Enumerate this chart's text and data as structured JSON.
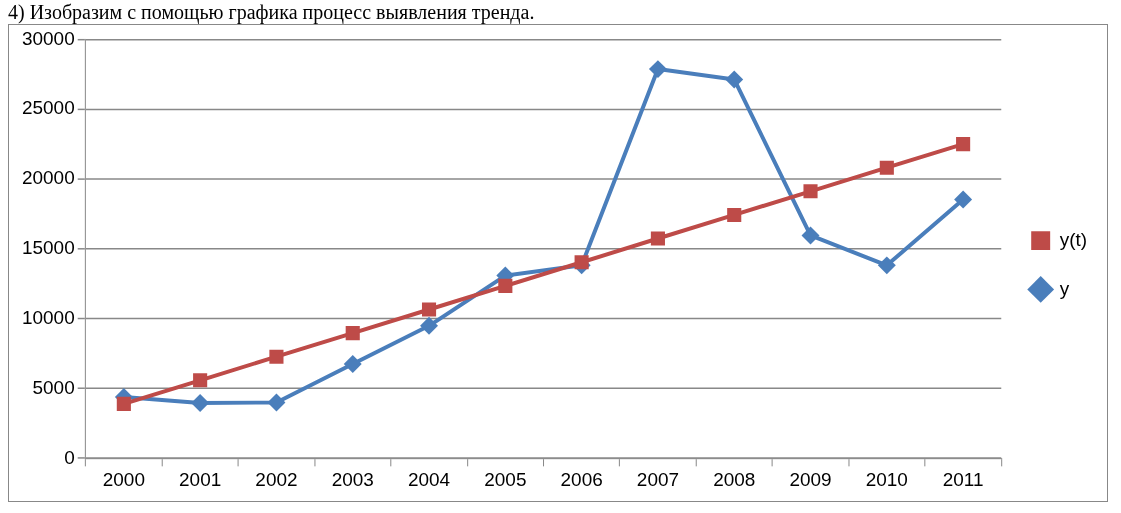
{
  "chart_data": {
    "type": "line",
    "annotations": [
      "4) Изобразим с помощью графика процесс выявления тренда."
    ],
    "categories": [
      "2000",
      "2001",
      "2002",
      "2003",
      "2004",
      "2005",
      "2006",
      "2007",
      "2008",
      "2009",
      "2010",
      "2011"
    ],
    "series": [
      {
        "name": "y",
        "color": "#4a7ebb",
        "marker": "diamond",
        "values": [
          4400,
          3970,
          4000,
          6760,
          9490,
          13090,
          13820,
          27870,
          27130,
          15960,
          13820,
          18530
        ]
      },
      {
        "name": "y(t)",
        "color": "#be4b48",
        "marker": "square",
        "values": [
          3900,
          5590,
          7280,
          8970,
          10660,
          12350,
          14040,
          15740,
          17430,
          19120,
          20810,
          22500
        ]
      }
    ],
    "ylim": [
      0,
      30000
    ],
    "yticks": [
      0,
      5000,
      10000,
      15000,
      20000,
      25000,
      30000
    ],
    "grid": "y",
    "legend": "right",
    "line_style": "solid"
  }
}
